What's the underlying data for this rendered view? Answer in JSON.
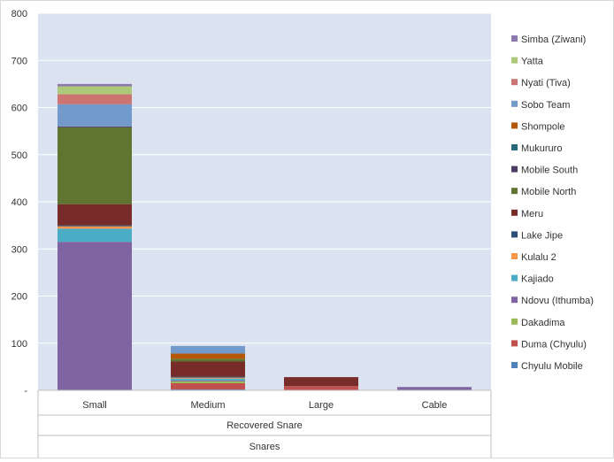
{
  "chart_data": {
    "type": "bar",
    "stacked": true,
    "categories": [
      "Small",
      "Medium",
      "Large",
      "Cable"
    ],
    "category_group": "Recovered Snare",
    "outer_group": "Snares",
    "ylim": [
      0,
      800
    ],
    "yticks": [
      {
        "value": 0,
        "label": "-"
      },
      {
        "value": 100,
        "label": "100"
      },
      {
        "value": 200,
        "label": "200"
      },
      {
        "value": 300,
        "label": "300"
      },
      {
        "value": 400,
        "label": "400"
      },
      {
        "value": 500,
        "label": "500"
      },
      {
        "value": 600,
        "label": "600"
      },
      {
        "value": 700,
        "label": "700"
      },
      {
        "value": 800,
        "label": "800"
      }
    ],
    "grid": true,
    "legend_position": "right",
    "series": [
      {
        "name": "Chyulu Mobile",
        "color": "#4f81bd",
        "values": [
          0,
          2,
          0,
          0
        ]
      },
      {
        "name": "Duma (Chyulu)",
        "color": "#c0504d",
        "values": [
          0,
          13,
          9,
          0
        ]
      },
      {
        "name": "Dakadima",
        "color": "#9bbb59",
        "values": [
          0,
          4,
          0,
          0
        ]
      },
      {
        "name": "Ndovu (Ithumba)",
        "color": "#8064a2",
        "values": [
          315,
          2,
          0,
          7
        ]
      },
      {
        "name": "Kajiado",
        "color": "#4bacc6",
        "values": [
          28,
          4,
          0,
          0
        ]
      },
      {
        "name": "Kulalu 2",
        "color": "#f79646",
        "values": [
          5,
          2,
          0,
          0
        ]
      },
      {
        "name": "Lake Jipe",
        "color": "#2c4d75",
        "values": [
          2,
          2,
          0,
          0
        ]
      },
      {
        "name": "Meru",
        "color": "#772c2a",
        "values": [
          45,
          32,
          19,
          0
        ]
      },
      {
        "name": "Mobile North",
        "color": "#5f7530",
        "values": [
          163,
          6,
          0,
          0
        ]
      },
      {
        "name": "Mobile South",
        "color": "#4d3b62",
        "values": [
          2,
          0,
          0,
          0
        ]
      },
      {
        "name": "Mukururo",
        "color": "#276a7c",
        "values": [
          0,
          0,
          0,
          0
        ]
      },
      {
        "name": "Shompole",
        "color": "#b65708",
        "values": [
          0,
          11,
          0,
          0
        ]
      },
      {
        "name": "Sobo Team",
        "color": "#729aca",
        "values": [
          47,
          16,
          0,
          0
        ]
      },
      {
        "name": "Nyati (Tiva)",
        "color": "#cd7371",
        "values": [
          21,
          0,
          0,
          0
        ]
      },
      {
        "name": "Yatta",
        "color": "#afc97a",
        "values": [
          17,
          0,
          0,
          0
        ]
      },
      {
        "name": "Simba (Ziwani)",
        "color": "#8d79ad",
        "values": [
          5,
          0,
          0,
          0
        ]
      }
    ]
  },
  "colors": {
    "plot_background": "#dbe3f1",
    "grid": "#ffffff",
    "axis": "#bfbfbf"
  }
}
